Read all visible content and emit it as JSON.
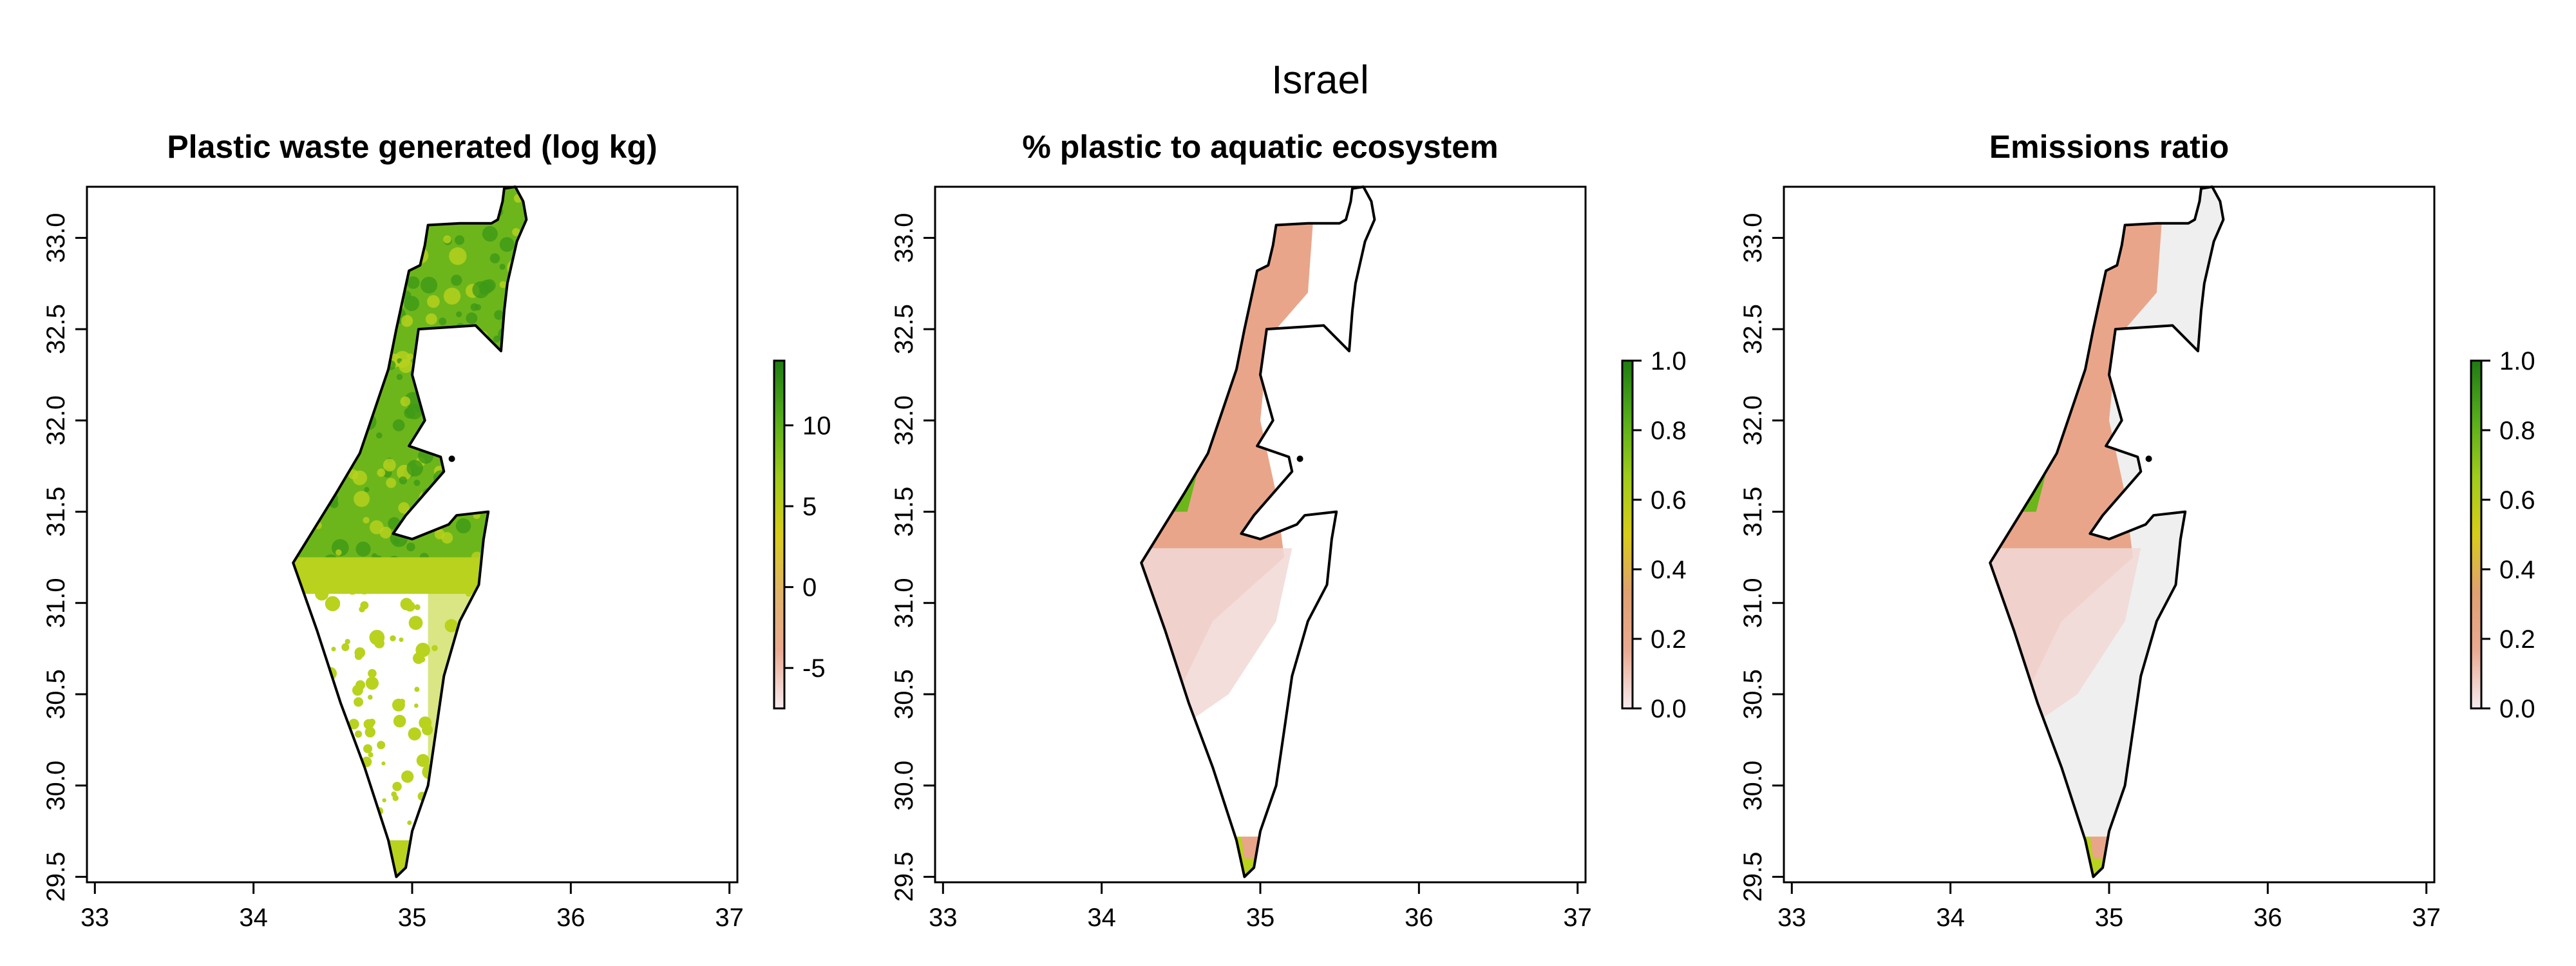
{
  "figure_title": "Israel",
  "panels": [
    {
      "title": "Plastic waste generated (log kg)",
      "colorbar": {
        "min": -7.5,
        "max": 14,
        "ticks": [
          -5,
          0,
          5,
          10
        ],
        "stops": [
          "#f6ecef",
          "#eaaa92",
          "#e0b36a",
          "#d9cc18",
          "#9fcc1a",
          "#55ad1a",
          "#1f7b12"
        ]
      },
      "fill": "waste"
    },
    {
      "title": "% plastic to aquatic ecosystem",
      "colorbar": {
        "min": 0.0,
        "max": 1.0,
        "ticks": [
          "0.0",
          "0.2",
          "0.4",
          "0.6",
          "0.8",
          "1.0"
        ],
        "stops": [
          "#f6ecef",
          "#eaaa92",
          "#e0a070",
          "#d9cc18",
          "#9fcc1a",
          "#55ad1a",
          "#1f7b12"
        ]
      },
      "fill": "aquatic"
    },
    {
      "title": "Emissions ratio",
      "colorbar": {
        "min": 0.0,
        "max": 1.0,
        "ticks": [
          "0.0",
          "0.2",
          "0.4",
          "0.6",
          "0.8",
          "1.0"
        ],
        "stops": [
          "#f6ecef",
          "#eaaa92",
          "#e0a070",
          "#d9cc18",
          "#9fcc1a",
          "#55ad1a",
          "#1f7b12"
        ]
      },
      "fill": "emissions"
    }
  ],
  "axes": {
    "x_ticks": [
      "33",
      "34",
      "35",
      "36",
      "37"
    ],
    "y_ticks": [
      "29.5",
      "30.0",
      "30.5",
      "31.0",
      "31.5",
      "32.0",
      "32.5",
      "33.0"
    ],
    "xlim": [
      32.95,
      37.05
    ],
    "ylim": [
      29.47,
      33.28
    ]
  },
  "map": {
    "outline_color": "#000000",
    "colors": {
      "dark_green": "#3f9a16",
      "green": "#6cb61c",
      "yellow_green": "#b9d21e",
      "salmon": "#e9a58a",
      "pale_pink": "#f1d8d6",
      "light_grey": "#efefef"
    }
  }
}
